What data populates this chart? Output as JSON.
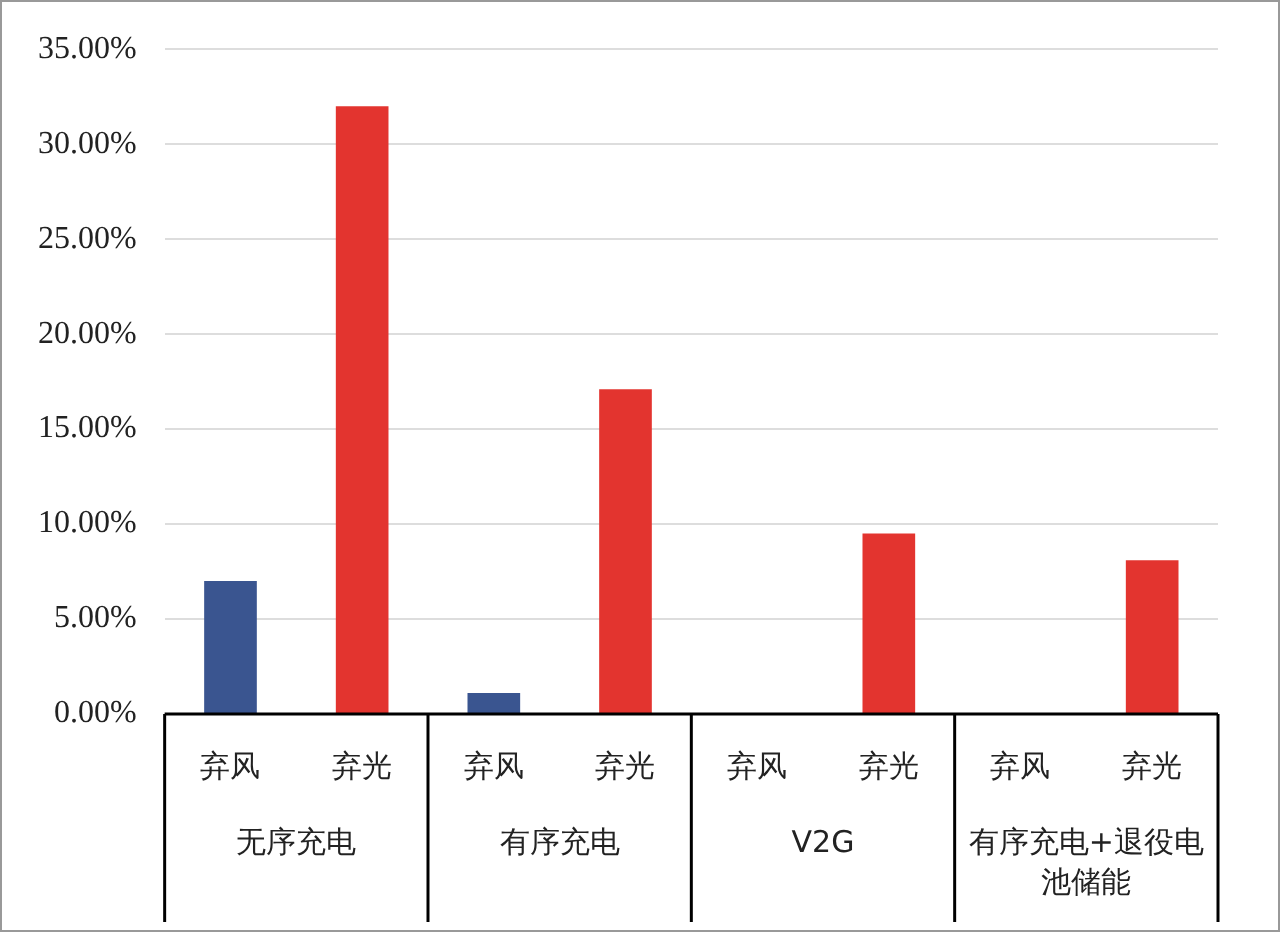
{
  "chart_data": {
    "type": "bar",
    "categories": [
      "无序充电",
      "有序充电",
      "V2G",
      "有序充电+退役电池储能"
    ],
    "series": [
      {
        "name": "弃风",
        "color": "#3a5590",
        "values": [
          7.0,
          1.1,
          0,
          0
        ]
      },
      {
        "name": "弃光",
        "color": "#e3342f",
        "values": [
          32.0,
          17.1,
          9.5,
          8.1
        ]
      }
    ],
    "ylim": [
      0,
      35
    ],
    "yticks": [
      {
        "value": 0,
        "label": "0.00%"
      },
      {
        "value": 5,
        "label": "5.00%"
      },
      {
        "value": 10,
        "label": "10.00%"
      },
      {
        "value": 15,
        "label": "15.00%"
      },
      {
        "value": 20,
        "label": "20.00%"
      },
      {
        "value": 25,
        "label": "25.00%"
      },
      {
        "value": 30,
        "label": "30.00%"
      },
      {
        "value": 35,
        "label": "35.00%"
      }
    ],
    "grid": "y",
    "legend": false
  }
}
